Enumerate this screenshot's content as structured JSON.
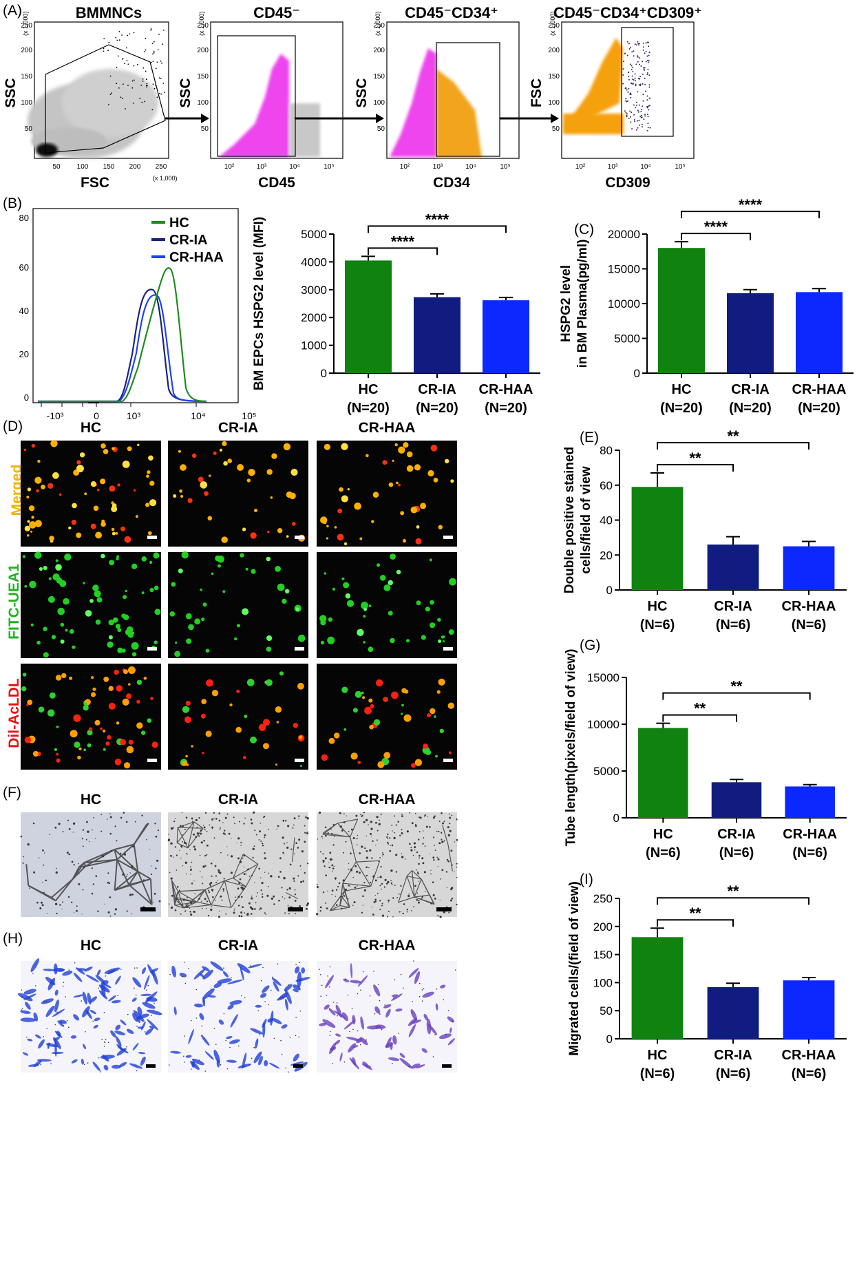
{
  "panel_labels": {
    "A": "(A)",
    "B": "(B)",
    "C": "(C)",
    "D": "(D)",
    "E": "(E)",
    "F": "(F)",
    "G": "(G)",
    "H": "(H)",
    "I": "(I)"
  },
  "flow_plots": [
    {
      "title": "BMMNCs",
      "x_label": "FSC",
      "y_label": "SSC",
      "x_ticks": [
        "50",
        "100",
        "150",
        "200",
        "250"
      ],
      "y_ticks": [
        "50",
        "100",
        "150",
        "200",
        "250"
      ],
      "x_mult": "(x 1,000)",
      "y_mult": "(x 1,000)"
    },
    {
      "title": "CD45⁻",
      "x_label": "CD45",
      "y_label": "SSC",
      "x_ticks": [
        "10²",
        "10³",
        "10⁴",
        "10⁵"
      ],
      "y_ticks": [
        "50",
        "100",
        "150",
        "200",
        "250"
      ],
      "y_mult": "(x 1,000)"
    },
    {
      "title": "CD45⁻CD34⁺",
      "x_label": "CD34",
      "y_label": "SSC",
      "x_ticks": [
        "10²",
        "10³",
        "10⁴",
        "10⁵"
      ],
      "y_ticks": [
        "50",
        "100",
        "150",
        "200",
        "250"
      ],
      "y_mult": "(x 1,000)"
    },
    {
      "title": "CD45⁻CD34⁺CD309⁺",
      "x_label": "CD309",
      "y_label": "FSC",
      "x_ticks": [
        "10²",
        "10³",
        "10⁴",
        "10⁵"
      ],
      "y_ticks": [
        "50",
        "100",
        "150",
        "200",
        "250"
      ],
      "y_mult": "(x 1,000)"
    }
  ],
  "histogram": {
    "y_ticks": [
      "0",
      "20",
      "40",
      "60",
      "80"
    ],
    "x_ticks": [
      "-10³",
      "0",
      "10³",
      "10⁴",
      "10⁵"
    ],
    "legend": [
      {
        "name": "HC",
        "color": "#1e8c1e"
      },
      {
        "name": "CR-IA",
        "color": "#1a237e"
      },
      {
        "name": "CR-HAA",
        "color": "#1e40ff"
      }
    ]
  },
  "micro_D": {
    "cols": [
      "HC",
      "CR-IA",
      "CR-HAA"
    ],
    "rows": [
      {
        "label": "Merged",
        "color": "#f0b400"
      },
      {
        "label": "FITC-UEA1",
        "color": "#1eb41e"
      },
      {
        "label": "Dil-AcLDL",
        "color": "#e81010"
      }
    ]
  },
  "micro_F": {
    "cols": [
      "HC",
      "CR-IA",
      "CR-HAA"
    ]
  },
  "micro_H": {
    "cols": [
      "HC",
      "CR-IA",
      "CR-HAA"
    ]
  },
  "colors": {
    "HC": "#0f820f",
    "CR-IA": "#101c80",
    "CR-HAA": "#0a28ff"
  },
  "chart_data": [
    {
      "id": "B",
      "type": "bar",
      "categories": [
        "HC\n(N=20)",
        "CR-IA\n(N=20)",
        "CR-HAA\n(N=20)"
      ],
      "values": [
        4050,
        2730,
        2620
      ],
      "errors": [
        150,
        120,
        100
      ],
      "ylabel": "BM EPCs HSPG2 level (MFI)",
      "ylim": [
        0,
        5000
      ],
      "yticks": [
        0,
        1000,
        2000,
        3000,
        4000,
        5000
      ],
      "sig": [
        "****",
        "****"
      ]
    },
    {
      "id": "C",
      "type": "bar",
      "categories": [
        "HC\n(N=20)",
        "CR-IA\n(N=20)",
        "CR-HAA\n(N=20)"
      ],
      "values": [
        18000,
        11500,
        11650
      ],
      "errors": [
        900,
        500,
        500
      ],
      "ylabel": "HSPG2 level\nin BM Plasma(pg/ml)",
      "ylim": [
        0,
        20000
      ],
      "yticks": [
        0,
        5000,
        10000,
        15000,
        20000
      ],
      "sig": [
        "****",
        "****"
      ]
    },
    {
      "id": "E",
      "type": "bar",
      "categories": [
        "HC\n(N=6)",
        "CR-IA\n(N=6)",
        "CR-HAA\n(N=6)"
      ],
      "values": [
        59,
        26,
        25
      ],
      "errors": [
        8,
        4.5,
        2.8
      ],
      "ylabel": "Double positive stained\ncells/field of view",
      "ylim": [
        0,
        80
      ],
      "yticks": [
        0,
        20,
        40,
        60,
        80
      ],
      "sig": [
        "**",
        "**"
      ]
    },
    {
      "id": "G",
      "type": "bar",
      "categories": [
        "HC\n(N=6)",
        "CR-IA\n(N=6)",
        "CR-HAA\n(N=6)"
      ],
      "values": [
        9600,
        3800,
        3350
      ],
      "errors": [
        500,
        300,
        200
      ],
      "ylabel": "Tube length(pixels/field of view)",
      "ylim": [
        0,
        15000
      ],
      "yticks": [
        0,
        5000,
        10000,
        15000
      ],
      "sig": [
        "**",
        "**"
      ]
    },
    {
      "id": "I",
      "type": "bar",
      "categories": [
        "HC\n(N=6)",
        "CR-IA\n(N=6)",
        "CR-HAA\n(N=6)"
      ],
      "values": [
        181,
        92,
        104
      ],
      "errors": [
        16,
        7,
        5
      ],
      "ylabel": "Migrated cells/(field of view)",
      "ylim": [
        0,
        250
      ],
      "yticks": [
        0,
        50,
        100,
        150,
        200,
        250
      ],
      "sig": [
        "**",
        "**"
      ]
    }
  ]
}
